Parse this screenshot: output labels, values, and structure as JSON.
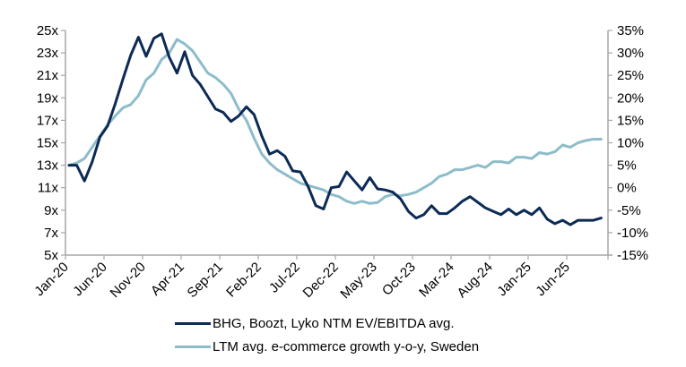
{
  "chart_data": {
    "type": "line",
    "title": "",
    "xlabel": "",
    "ylabel": "",
    "y2label": "",
    "grid": false,
    "legend_position": "bottom",
    "x_tick_labels": [
      "Jan-20",
      "Jun-20",
      "Nov-20",
      "Apr-21",
      "Sep-21",
      "Feb-22",
      "Jul-22",
      "Dec-22",
      "May-23",
      "Oct-23",
      "Mar-24",
      "Aug-24",
      "Jan-25",
      "Jun-25"
    ],
    "x_range_months": [
      0,
      70
    ],
    "y_left": {
      "ylim": [
        5,
        25
      ],
      "tick_labels": [
        "5x",
        "7x",
        "9x",
        "11x",
        "13x",
        "15x",
        "17x",
        "19x",
        "21x",
        "23x",
        "25x"
      ],
      "ticks": [
        5,
        7,
        9,
        11,
        13,
        15,
        17,
        19,
        21,
        23,
        25
      ]
    },
    "y_right": {
      "ylim": [
        -15,
        35
      ],
      "tick_labels": [
        "-15%",
        "-10%",
        "-5%",
        "0%",
        "5%",
        "10%",
        "15%",
        "20%",
        "25%",
        "30%",
        "35%"
      ],
      "ticks": [
        -15,
        -10,
        -5,
        0,
        5,
        10,
        15,
        20,
        25,
        30,
        35
      ]
    },
    "series": [
      {
        "name": "BHG, Boozt, Lyko NTM EV/EBITDA avg.",
        "axis": "left",
        "color": "#0b2a55",
        "x_months": [
          0,
          1,
          2,
          3,
          4,
          5,
          6,
          7,
          8,
          9,
          10,
          11,
          12,
          13,
          14,
          15,
          16,
          17,
          18,
          19,
          20,
          21,
          22,
          23,
          24,
          25,
          26,
          27,
          28,
          29,
          30,
          31,
          32,
          33,
          34,
          35,
          36,
          37,
          38,
          39,
          40,
          41,
          42,
          43,
          44,
          45,
          46,
          47,
          48,
          49,
          50,
          51,
          52,
          53,
          54,
          55,
          56,
          57,
          58,
          59,
          60,
          61,
          62,
          63,
          64,
          65,
          66,
          67,
          68,
          69
        ],
        "values": [
          13.0,
          13.0,
          11.6,
          13.3,
          15.5,
          16.5,
          18.5,
          20.7,
          22.8,
          24.4,
          22.7,
          24.3,
          24.7,
          22.6,
          21.2,
          23.1,
          21.0,
          20.2,
          19.1,
          18.0,
          17.7,
          16.9,
          17.4,
          18.2,
          17.5,
          15.6,
          14.0,
          14.3,
          13.8,
          12.5,
          12.4,
          11.1,
          9.4,
          9.1,
          11.0,
          11.1,
          12.4,
          11.6,
          10.8,
          11.9,
          10.9,
          10.8,
          10.6,
          10.0,
          8.9,
          8.3,
          8.6,
          9.4,
          8.7,
          8.7,
          9.2,
          9.8,
          10.2,
          9.7,
          9.2,
          8.9,
          8.6,
          9.1,
          8.6,
          9.0,
          8.6,
          9.2,
          8.2,
          7.8,
          8.1,
          7.7,
          8.1,
          8.1,
          8.1,
          8.3
        ]
      },
      {
        "name": "LTM avg. e-commerce growth y-o-y, Sweden",
        "axis": "right",
        "color": "#8dbccb",
        "x_months": [
          0,
          1,
          2,
          3,
          4,
          5,
          6,
          7,
          8,
          9,
          10,
          11,
          12,
          13,
          14,
          15,
          16,
          17,
          18,
          19,
          20,
          21,
          22,
          23,
          24,
          25,
          26,
          27,
          28,
          29,
          30,
          31,
          32,
          33,
          34,
          35,
          36,
          37,
          38,
          39,
          40,
          41,
          42,
          43,
          44,
          45,
          46,
          47,
          48,
          49,
          50,
          51,
          52,
          53,
          54,
          55,
          56,
          57,
          58,
          59,
          60,
          61,
          62,
          63,
          64,
          65,
          66,
          67,
          68,
          69
        ],
        "values": [
          5.0,
          5.5,
          6.5,
          9.0,
          11.5,
          14.0,
          16.0,
          17.8,
          18.5,
          20.5,
          24.0,
          25.5,
          28.5,
          30.0,
          33.0,
          32.0,
          30.5,
          28.0,
          25.5,
          24.5,
          23.0,
          21.0,
          17.5,
          15.0,
          11.0,
          7.5,
          5.5,
          4.0,
          3.0,
          2.0,
          1.0,
          0.5,
          0.0,
          -0.5,
          -1.5,
          -2.0,
          -3.0,
          -3.5,
          -3.0,
          -3.5,
          -3.3,
          -2.0,
          -1.5,
          -1.8,
          -1.5,
          -1.0,
          0.0,
          1.0,
          2.5,
          3.0,
          4.0,
          4.0,
          4.5,
          5.0,
          4.5,
          5.8,
          5.8,
          5.5,
          6.8,
          6.8,
          6.5,
          7.8,
          7.5,
          8.0,
          9.5,
          9.0,
          10.0,
          10.5,
          10.8,
          10.8
        ]
      }
    ]
  },
  "legend": {
    "items": [
      {
        "label": "BHG, Boozt, Lyko NTM EV/EBITDA avg.",
        "color": "#0b2a55"
      },
      {
        "label": "LTM avg. e-commerce growth y-o-y, Sweden",
        "color": "#8dbccb"
      }
    ]
  }
}
